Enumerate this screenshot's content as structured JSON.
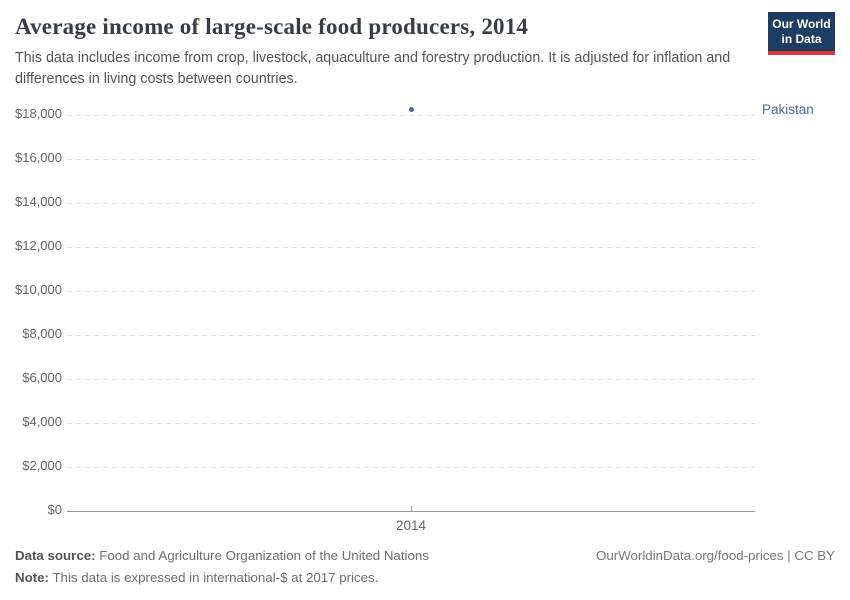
{
  "header": {
    "title": "Average income of large-scale food producers, 2014",
    "subtitle": "This data includes income from crop, livestock, aquaculture and forestry production. It is adjusted for inflation and differences in living costs between countries.",
    "logo": {
      "line1": "Our World",
      "line2": "in Data"
    }
  },
  "chart_data": {
    "type": "scatter",
    "title": "Average income of large-scale food producers, 2014",
    "x": [
      2014
    ],
    "series": [
      {
        "name": "Pakistan",
        "values": [
          18270
        ]
      }
    ],
    "xlabel": "",
    "ylabel": "",
    "ylim": [
      0,
      18500
    ],
    "grid": "horizontal-dashed",
    "legend_position": "entity-label-right-of-point",
    "yticks": [
      {
        "value": 0,
        "label": "$0"
      },
      {
        "value": 2000,
        "label": "$2,000"
      },
      {
        "value": 4000,
        "label": "$4,000"
      },
      {
        "value": 6000,
        "label": "$6,000"
      },
      {
        "value": 8000,
        "label": "$8,000"
      },
      {
        "value": 10000,
        "label": "$10,000"
      },
      {
        "value": 12000,
        "label": "$12,000"
      },
      {
        "value": 14000,
        "label": "$14,000"
      },
      {
        "value": 16000,
        "label": "$16,000"
      },
      {
        "value": 18000,
        "label": "$18,000"
      }
    ],
    "xticks": [
      {
        "value": 2014,
        "label": "2014"
      }
    ]
  },
  "colors": {
    "series": "#4c6a9c",
    "gridline": "#dddddd",
    "axis": "#999999",
    "logo_bg": "#1d3d63",
    "logo_stripe": "#d9353f"
  },
  "footer": {
    "datasource_label": "Data source:",
    "datasource_text": " Food and Agriculture Organization of the United Nations",
    "note_label": "Note:",
    "note_text": " This data is expressed in international-$ at 2017 prices.",
    "credit": "OurWorldinData.org/food-prices | CC BY"
  }
}
